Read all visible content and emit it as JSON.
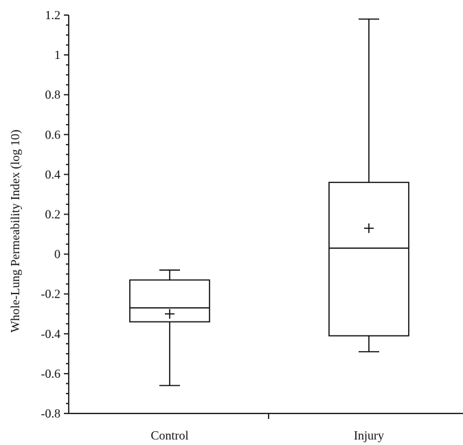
{
  "chart_data": {
    "type": "boxplot",
    "ylabel": "Whole-Lung Permeability Index (log 10)",
    "xlabel": "",
    "ylim": [
      -0.8,
      1.2
    ],
    "yticks": [
      -0.8,
      -0.6,
      -0.4,
      -0.2,
      0,
      0.2,
      0.4,
      0.6,
      0.8,
      1,
      1.2
    ],
    "ytick_labels": [
      "-0.8",
      "-0.6",
      "-0.4",
      "-0.2",
      "0",
      "0.2",
      "0.4",
      "0.6",
      "0.8",
      "1",
      "1.2"
    ],
    "categories": [
      "Control",
      "Injury"
    ],
    "series": [
      {
        "category": "Control",
        "min": -0.66,
        "q1": -0.34,
        "median": -0.27,
        "q3": -0.13,
        "max": -0.08,
        "mean": -0.3
      },
      {
        "category": "Injury",
        "min": -0.49,
        "q1": -0.41,
        "median": 0.03,
        "q3": 0.36,
        "max": 1.18,
        "mean": 0.13
      }
    ],
    "grid": false,
    "legend": "none"
  }
}
